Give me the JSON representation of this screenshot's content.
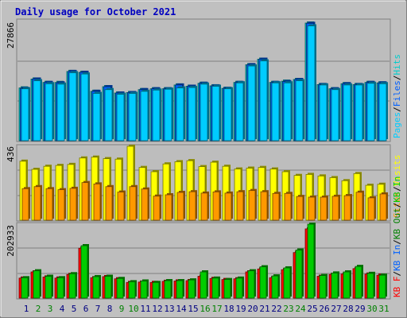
{
  "title": "Daily usage for October 2021",
  "colors": {
    "background": "#c0c0c0",
    "title": "#0000c0",
    "panel": "#bdbdbd",
    "hits": "#00cccc",
    "files": "#0060ff",
    "pages": "#00ccff",
    "visits": "#ffff00",
    "sites": "#ff9900",
    "kb_in": "#00cc00",
    "kb_out": "#008000",
    "kb_f": "#ff0000",
    "weekend_day": "#008000",
    "weekday": "#000080"
  },
  "chart_data": [
    {
      "type": "bar",
      "panel": "top",
      "ymax_label": "27866",
      "ylim": [
        0,
        27866
      ],
      "right_legend": [
        {
          "text": "Pages",
          "color": "#00ccff"
        },
        {
          "text": "/",
          "color": "#000000"
        },
        {
          "text": "Files",
          "color": "#0060ff"
        },
        {
          "text": "/",
          "color": "#000000"
        },
        {
          "text": "Hits",
          "color": "#00cccc"
        }
      ],
      "categories": [
        "1",
        "2",
        "3",
        "4",
        "5",
        "6",
        "7",
        "8",
        "9",
        "10",
        "11",
        "12",
        "13",
        "14",
        "15",
        "16",
        "17",
        "18",
        "19",
        "20",
        "21",
        "22",
        "23",
        "24",
        "25",
        "26",
        "27",
        "28",
        "29",
        "30",
        "31"
      ],
      "series": [
        {
          "name": "Hits",
          "color": "#00cccc",
          "values": [
            12500,
            14600,
            13800,
            13800,
            16400,
            16200,
            11700,
            12800,
            11300,
            11400,
            12100,
            12300,
            12300,
            13200,
            12900,
            13600,
            13000,
            12400,
            13800,
            18000,
            19300,
            13800,
            14100,
            14500,
            27866,
            13300,
            12300,
            13500,
            13300,
            13800,
            13700
          ]
        },
        {
          "name": "Files",
          "color": "#0060ff",
          "values": [
            12400,
            14600,
            13800,
            13700,
            16400,
            16200,
            11700,
            12800,
            11300,
            11400,
            12100,
            12300,
            12300,
            13200,
            12900,
            13600,
            13000,
            12400,
            13800,
            18000,
            19300,
            13800,
            14000,
            14500,
            27800,
            13300,
            12300,
            13500,
            13300,
            13800,
            13700
          ]
        },
        {
          "name": "Pages",
          "color": "#00ccff",
          "values": [
            12300,
            14200,
            13500,
            13400,
            16100,
            15800,
            11200,
            12100,
            11000,
            11200,
            11700,
            12000,
            12200,
            12500,
            12600,
            13400,
            12900,
            12300,
            13700,
            17700,
            18900,
            13700,
            13700,
            14200,
            27200,
            13200,
            12100,
            13200,
            13200,
            13600,
            13500
          ]
        }
      ]
    },
    {
      "type": "bar",
      "panel": "middle",
      "ymax_label": "436",
      "ylim": [
        0,
        436
      ],
      "right_legend": [
        {
          "text": "Sites",
          "color": "#ff9900"
        },
        {
          "text": "/",
          "color": "#000000"
        },
        {
          "text": "Visits",
          "color": "#ffff00"
        }
      ],
      "series": [
        {
          "name": "Visits",
          "color": "#ffff00",
          "values": [
            348,
            300,
            318,
            323,
            329,
            367,
            372,
            363,
            360,
            436,
            311,
            286,
            332,
            345,
            351,
            316,
            342,
            318,
            302,
            307,
            311,
            302,
            286,
            264,
            270,
            261,
            251,
            233,
            275,
            206,
            212
          ]
        },
        {
          "name": "Sites",
          "color": "#ff9900",
          "values": [
            186,
            198,
            186,
            180,
            188,
            222,
            214,
            198,
            166,
            198,
            184,
            142,
            150,
            164,
            168,
            160,
            167,
            160,
            168,
            175,
            168,
            158,
            158,
            140,
            136,
            136,
            141,
            145,
            165,
            132,
            155
          ]
        }
      ]
    },
    {
      "type": "bar",
      "panel": "bottom",
      "ymax_label": "202933",
      "ylim": [
        0,
        202933
      ],
      "right_legend": [
        {
          "text": "KB F",
          "color": "#ff0000"
        },
        {
          "text": "/",
          "color": "#000000"
        },
        {
          "text": "KB In",
          "color": "#0060ff"
        },
        {
          "text": "/",
          "color": "#000000"
        },
        {
          "text": "KB Out",
          "color": "#008000"
        },
        {
          "text": "/",
          "color": "#000000"
        },
        {
          "text": "KB In",
          "color": "#00cc00"
        }
      ],
      "series": [
        {
          "name": "KB F",
          "color": "#ff0000",
          "values": [
            55000,
            72000,
            58000,
            55000,
            65000,
            137000,
            56000,
            59000,
            53000,
            43000,
            44000,
            43000,
            46000,
            47000,
            48000,
            60000,
            54000,
            51000,
            53000,
            72000,
            80000,
            56000,
            78000,
            125000,
            190000,
            60000,
            65000,
            66000,
            81000,
            66000,
            63000
          ]
        },
        {
          "name": "KB In",
          "color": "#00cc00",
          "values": [
            56000,
            75000,
            60000,
            56000,
            67000,
            144000,
            59000,
            60000,
            54000,
            45000,
            47000,
            43000,
            48000,
            48000,
            50000,
            72000,
            55000,
            51000,
            55000,
            75000,
            86000,
            61000,
            83000,
            132000,
            202933,
            62000,
            69000,
            72000,
            87000,
            68000,
            63000
          ]
        }
      ]
    }
  ],
  "days": [
    {
      "label": "1",
      "weekend": false
    },
    {
      "label": "2",
      "weekend": true
    },
    {
      "label": "3",
      "weekend": true
    },
    {
      "label": "4",
      "weekend": false
    },
    {
      "label": "5",
      "weekend": false
    },
    {
      "label": "6",
      "weekend": false
    },
    {
      "label": "7",
      "weekend": false
    },
    {
      "label": "8",
      "weekend": false
    },
    {
      "label": "9",
      "weekend": true
    },
    {
      "label": "10",
      "weekend": true
    },
    {
      "label": "11",
      "weekend": false
    },
    {
      "label": "12",
      "weekend": false
    },
    {
      "label": "13",
      "weekend": false
    },
    {
      "label": "14",
      "weekend": false
    },
    {
      "label": "15",
      "weekend": false
    },
    {
      "label": "16",
      "weekend": true
    },
    {
      "label": "17",
      "weekend": true
    },
    {
      "label": "18",
      "weekend": false
    },
    {
      "label": "19",
      "weekend": false
    },
    {
      "label": "20",
      "weekend": false
    },
    {
      "label": "21",
      "weekend": false
    },
    {
      "label": "22",
      "weekend": false
    },
    {
      "label": "23",
      "weekend": true
    },
    {
      "label": "24",
      "weekend": true
    },
    {
      "label": "25",
      "weekend": false
    },
    {
      "label": "26",
      "weekend": false
    },
    {
      "label": "27",
      "weekend": false
    },
    {
      "label": "28",
      "weekend": false
    },
    {
      "label": "29",
      "weekend": false
    },
    {
      "label": "30",
      "weekend": true
    },
    {
      "label": "31",
      "weekend": true
    }
  ]
}
